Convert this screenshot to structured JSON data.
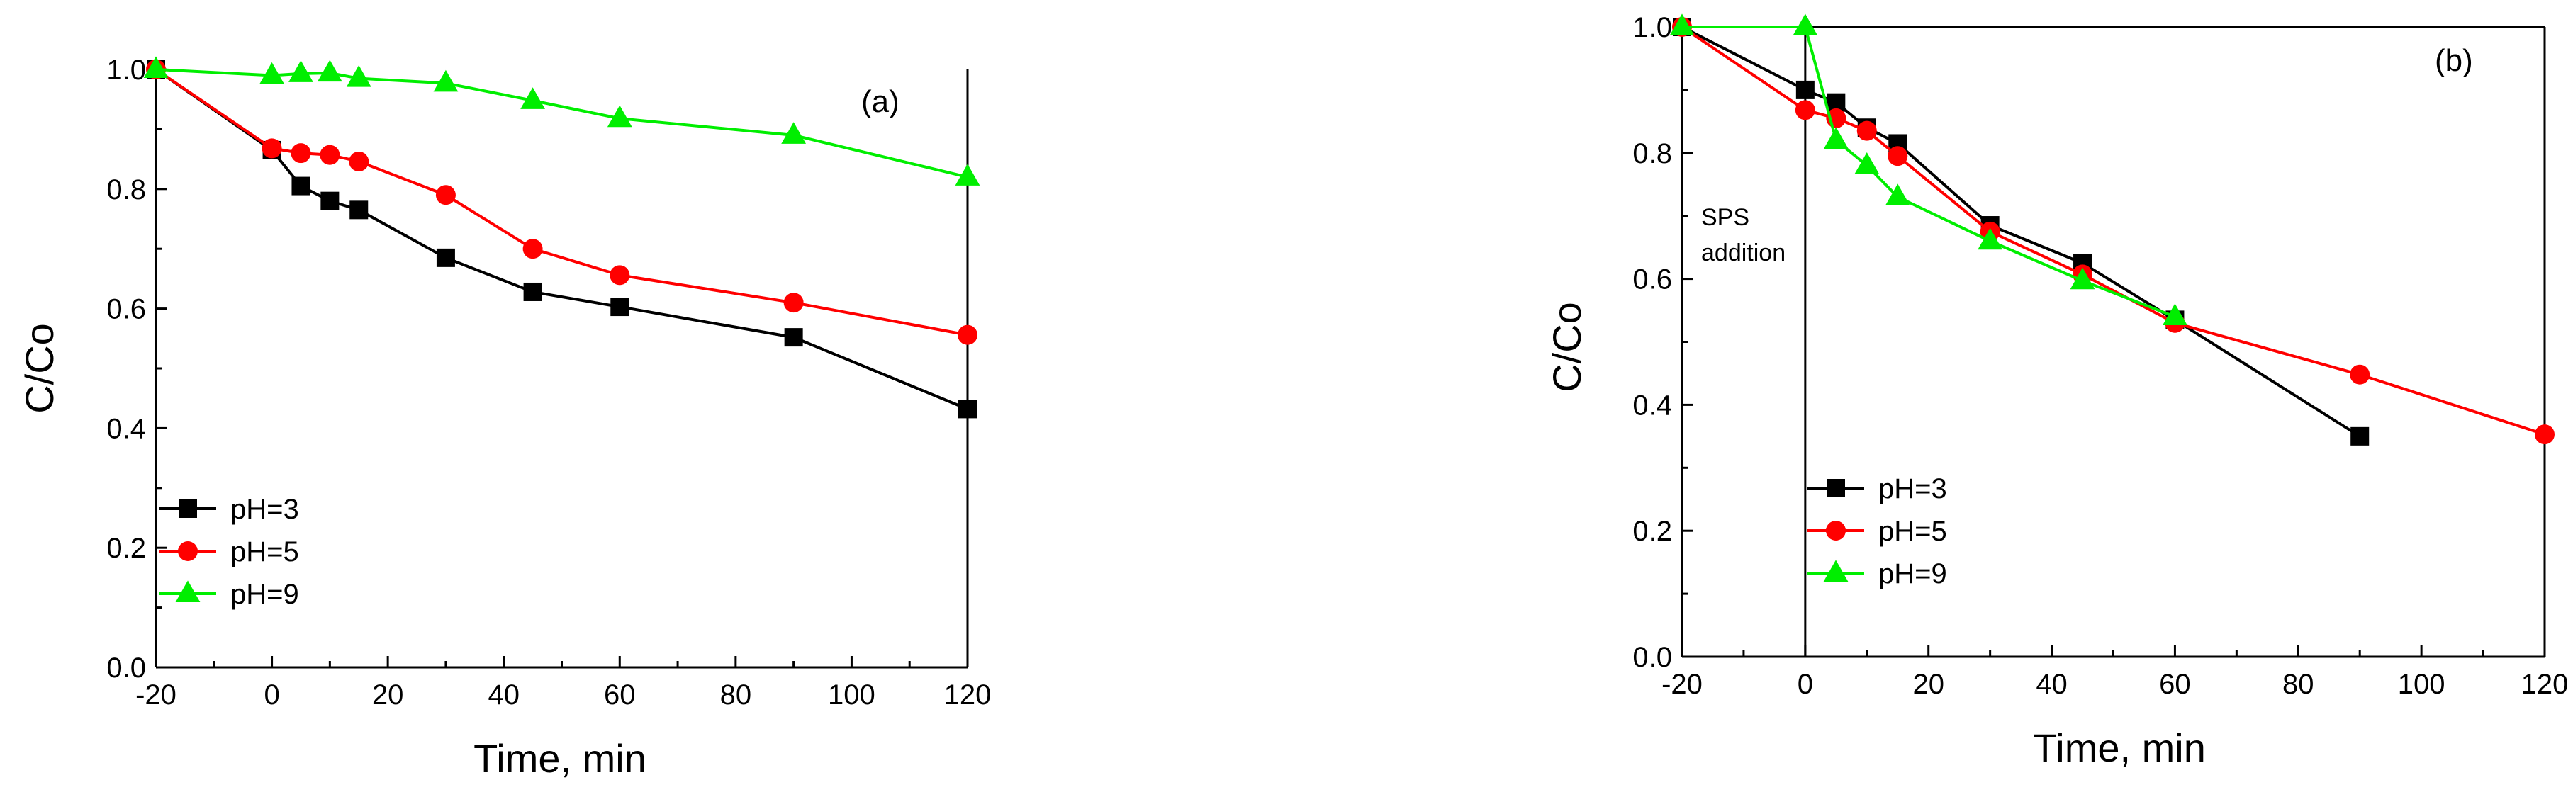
{
  "chart_data": [
    {
      "type": "line",
      "panel_label": "(a)",
      "xlabel": "Time, min",
      "ylabel": "C/Co",
      "xlim": [
        -20,
        120
      ],
      "ylim": [
        0,
        1.0
      ],
      "xticks": [
        -20,
        0,
        20,
        40,
        60,
        80,
        100,
        120
      ],
      "yticks": [
        0.0,
        0.2,
        0.4,
        0.6,
        0.8,
        1.0
      ],
      "xtick_labels": [
        "-20",
        "0",
        "20",
        "40",
        "60",
        "80",
        "100",
        "120"
      ],
      "ytick_labels": [
        "0.0",
        "0.2",
        "0.4",
        "0.6",
        "0.8",
        "1.0"
      ],
      "legend_position": "bottom-left",
      "series": [
        {
          "name": "pH=3",
          "color": "#000000",
          "marker": "square",
          "x": [
            -20,
            0,
            5,
            10,
            15,
            30,
            45,
            60,
            90,
            120
          ],
          "y": [
            1.0,
            0.865,
            0.805,
            0.78,
            0.765,
            0.685,
            0.628,
            0.603,
            0.552,
            0.432
          ]
        },
        {
          "name": "pH=5",
          "color": "#ff0000",
          "marker": "circle",
          "x": [
            -20,
            0,
            5,
            10,
            15,
            30,
            45,
            60,
            90,
            120
          ],
          "y": [
            1.0,
            0.868,
            0.86,
            0.857,
            0.846,
            0.79,
            0.7,
            0.656,
            0.61,
            0.556
          ]
        },
        {
          "name": "pH=9",
          "color": "#00ee00",
          "marker": "triangle",
          "x": [
            -20,
            0,
            5,
            10,
            15,
            30,
            45,
            60,
            90,
            120
          ],
          "y": [
            1.0,
            0.99,
            0.993,
            0.994,
            0.985,
            0.977,
            0.948,
            0.918,
            0.89,
            0.82
          ]
        }
      ]
    },
    {
      "type": "line",
      "panel_label": "(b)",
      "xlabel": "Time, min",
      "ylabel": "C/Co",
      "xlim": [
        -20,
        120
      ],
      "ylim": [
        0,
        1.0
      ],
      "xticks": [
        -20,
        0,
        20,
        40,
        60,
        80,
        100,
        120
      ],
      "yticks": [
        0.0,
        0.2,
        0.4,
        0.6,
        0.8,
        1.0
      ],
      "xtick_labels": [
        "-20",
        "0",
        "20",
        "40",
        "60",
        "80",
        "100",
        "120"
      ],
      "ytick_labels": [
        "0.0",
        "0.2",
        "0.4",
        "0.6",
        "0.8",
        "1.0"
      ],
      "legend_position": "bottom-left",
      "annotation": {
        "lines": [
          "SPS",
          "addition"
        ],
        "x": 0
      },
      "series": [
        {
          "name": "pH=3",
          "color": "#000000",
          "marker": "square",
          "x": [
            -20,
            0,
            5,
            10,
            15,
            30,
            45,
            60,
            90
          ],
          "y": [
            1.0,
            0.9,
            0.88,
            0.84,
            0.815,
            0.685,
            0.625,
            0.535,
            0.35
          ]
        },
        {
          "name": "pH=5",
          "color": "#ff0000",
          "marker": "circle",
          "x": [
            -20,
            0,
            5,
            10,
            15,
            30,
            45,
            60,
            90,
            120
          ],
          "y": [
            1.0,
            0.868,
            0.855,
            0.835,
            0.795,
            0.675,
            0.607,
            0.53,
            0.448,
            0.353
          ]
        },
        {
          "name": "pH=9",
          "color": "#00ee00",
          "marker": "triangle",
          "x": [
            -20,
            0,
            5,
            10,
            15,
            30,
            45,
            60
          ],
          "y": [
            1.0,
            1.0,
            0.82,
            0.78,
            0.73,
            0.66,
            0.597,
            0.54
          ]
        }
      ]
    }
  ]
}
